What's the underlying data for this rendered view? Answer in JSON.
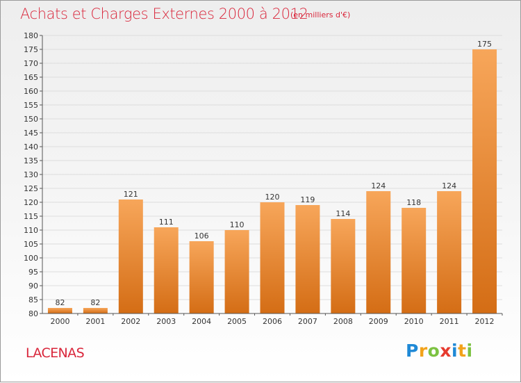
{
  "title": "Achats et Charges Externes 2000 à 2012",
  "subtitle": "(en milliers d'€)",
  "commune": "LACENAS",
  "brand": {
    "letters": [
      "P",
      "r",
      "o",
      "x",
      "i",
      "t",
      "i"
    ]
  },
  "colors": {
    "title": "#d9263b",
    "bar_light": "#f7a65a",
    "bar_dark": "#d46d15",
    "axis": "#555555",
    "grid": "#dddddd"
  },
  "chart_data": {
    "type": "bar",
    "title": "Achats et Charges Externes 2000 à 2012",
    "subtitle": "(en milliers d'€)",
    "categories": [
      "2000",
      "2001",
      "2002",
      "2003",
      "2004",
      "2005",
      "2006",
      "2007",
      "2008",
      "2009",
      "2010",
      "2011",
      "2012"
    ],
    "values": [
      82,
      82,
      121,
      111,
      106,
      110,
      120,
      119,
      114,
      124,
      118,
      124,
      175
    ],
    "ylim": [
      80,
      180
    ],
    "yticks": [
      80,
      85,
      90,
      95,
      100,
      105,
      110,
      115,
      120,
      125,
      130,
      135,
      140,
      145,
      150,
      155,
      160,
      165,
      170,
      175,
      180
    ],
    "grid": true,
    "legend": "none",
    "data_labels": true
  }
}
